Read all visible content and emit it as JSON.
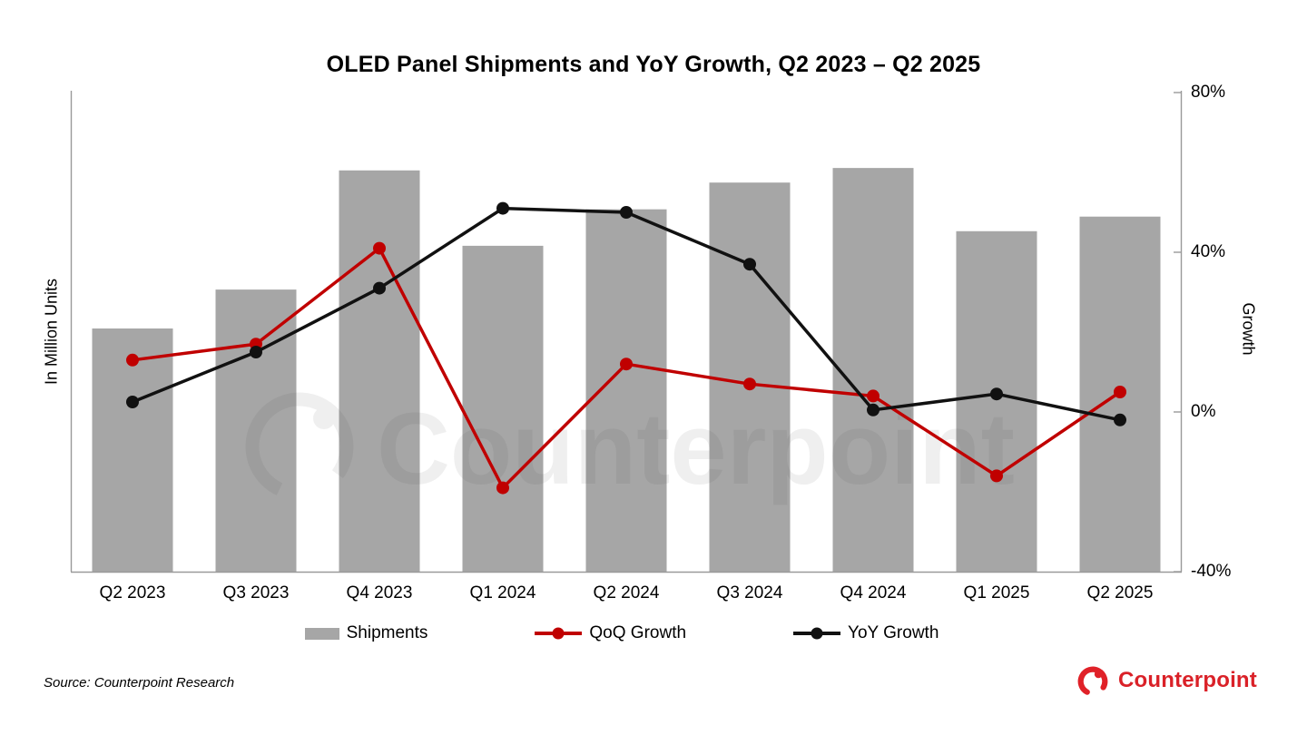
{
  "title": "OLED Panel Shipments and YoY Growth, Q2 2023 – Q2 2025",
  "left_axis_label": "In Million Units",
  "right_axis_label": "Growth",
  "right_axis_tick_labels": [
    "80%",
    "40%",
    "0%",
    "-40%"
  ],
  "source_note": "Source: Counterpoint Research",
  "watermark_text": "Counterpoint",
  "brand": {
    "logo_text": "Counterpoint",
    "logo_color": "#da2128"
  },
  "colors": {
    "bar": "#a6a6a6",
    "qoq_line": "#c00000",
    "yoy_line": "#111111",
    "axis": "#9a9a9a",
    "watermark": "#444444"
  },
  "chart_data": {
    "type": "bar",
    "subtype": "combo-bar-and-lines",
    "title": "OLED Panel Shipments and YoY Growth, Q2 2023 – Q2 2025",
    "categories": [
      "Q2 2023",
      "Q3 2023",
      "Q4 2023",
      "Q1 2024",
      "Q2 2024",
      "Q3 2024",
      "Q4 2024",
      "Q1 2025",
      "Q2 2025"
    ],
    "bar_series": {
      "name": "Shipments",
      "axis": "left",
      "unit": "relative index (left axis shows no tick values; Q2 2023 = 100)",
      "values": [
        100,
        116,
        165,
        134,
        149,
        160,
        166,
        140,
        146
      ]
    },
    "series": [
      {
        "name": "QoQ Growth",
        "axis": "right",
        "unit": "%",
        "values": [
          13,
          17,
          41,
          -19,
          12,
          7,
          4,
          -16,
          5
        ]
      },
      {
        "name": "YoY Growth",
        "axis": "right",
        "unit": "%",
        "values": [
          2.5,
          15,
          31,
          51,
          50,
          37,
          0.5,
          4.5,
          -2
        ]
      }
    ],
    "left_axis": {
      "label": "In Million Units",
      "tick_labels_visible": false
    },
    "right_axis": {
      "label": "Growth",
      "min": -40,
      "max": 80,
      "ticks": [
        80,
        40,
        0,
        -40
      ]
    },
    "legend": [
      "Shipments",
      "QoQ Growth",
      "YoY Growth"
    ],
    "legend_position": "bottom",
    "grid": false
  }
}
